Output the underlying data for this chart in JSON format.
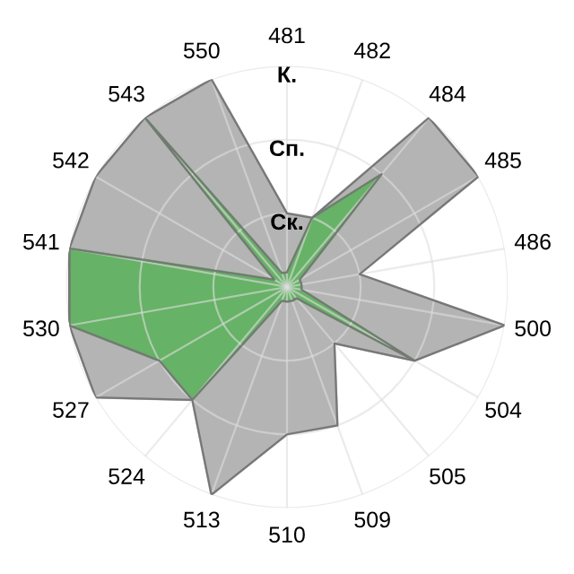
{
  "chart_data": {
    "type": "radar",
    "categories": [
      "481",
      "482",
      "484",
      "485",
      "486",
      "500",
      "504",
      "505",
      "509",
      "510",
      "513",
      "524",
      "527",
      "530",
      "541",
      "542",
      "543",
      "550"
    ],
    "series": [
      {
        "color": "#b4b4b4",
        "values": [
          1,
          1,
          3,
          3,
          1,
          3,
          2,
          1,
          2,
          2,
          3,
          2,
          3,
          3,
          3,
          3,
          3,
          3
        ]
      },
      {
        "color": "#66b266",
        "values": [
          0.2,
          1,
          2,
          0.2,
          0.2,
          0.2,
          2,
          0.2,
          0.2,
          0.2,
          0.2,
          2,
          2,
          3,
          3,
          0.2,
          3,
          0.2
        ]
      }
    ],
    "ylim": [
      0,
      3
    ],
    "yticks": [
      {
        "value": 1,
        "label": "Ск."
      },
      {
        "value": 2,
        "label": "Сп."
      },
      {
        "value": 3,
        "label": "К."
      }
    ],
    "grid": true,
    "legend": false
  }
}
